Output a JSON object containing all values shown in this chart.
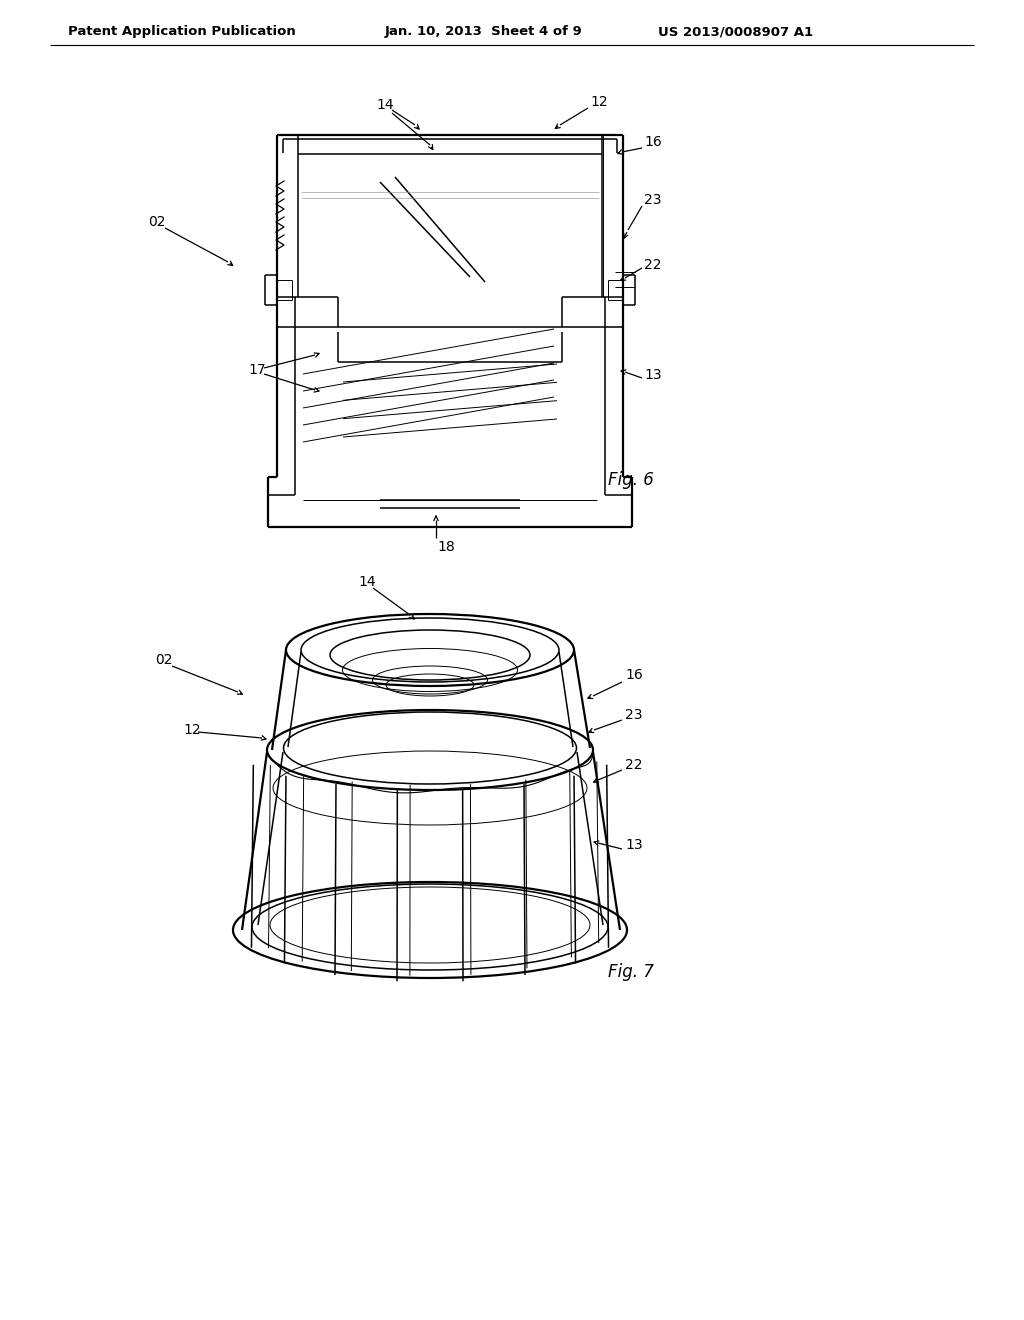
{
  "background_color": "#ffffff",
  "header_left": "Patent Application Publication",
  "header_center": "Jan. 10, 2013  Sheet 4 of 9",
  "header_right": "US 2013/0008907 A1",
  "fig6_label": "Fig. 6",
  "fig7_label": "Fig. 7"
}
